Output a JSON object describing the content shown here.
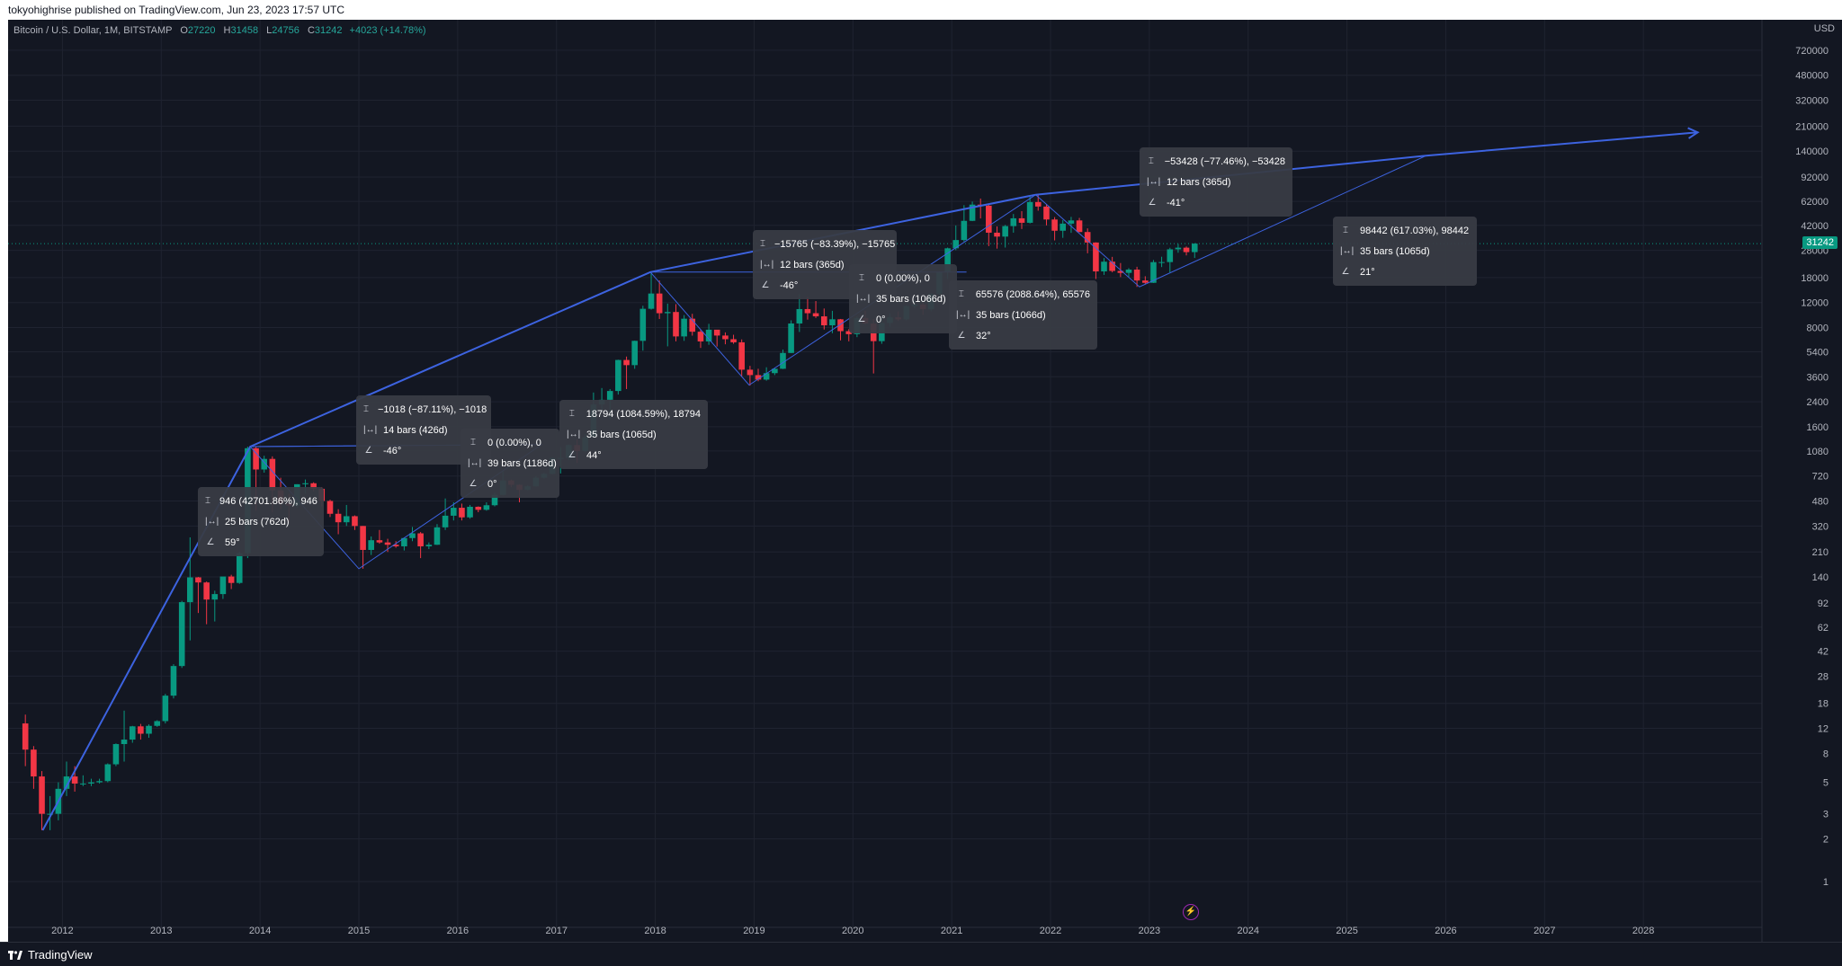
{
  "header": {
    "publish_text": "tokyohighrise published on TradingView.com, Jun 23, 2023 17:57 UTC"
  },
  "legend": {
    "symbol": "Bitcoin / U.S. Dollar, 1M, BITSTAMP",
    "o_label": "O",
    "o_value": "27220",
    "h_label": "H",
    "h_value": "31458",
    "l_label": "L",
    "l_value": "24756",
    "c_label": "C",
    "c_value": "31242",
    "change": "+4023 (+14.78%)"
  },
  "price_axis": {
    "currency": "USD",
    "last_price_label": "31242"
  },
  "footer": {
    "brand": "TradingView"
  },
  "colors": {
    "background": "#131722",
    "up": "#089981",
    "down": "#f23645",
    "drawing": "#3d63e0",
    "last_price": "#089981"
  },
  "chart_data": {
    "type": "candlestick",
    "symbol": "BTCUSD",
    "timeframe": "1M",
    "exchange": "BITSTAMP",
    "y_scale": "log",
    "y_ticks": [
      1,
      2,
      3,
      5,
      8,
      12,
      18,
      28,
      42,
      62,
      92,
      140,
      210,
      320,
      480,
      720,
      1080,
      1600,
      2400,
      3600,
      5400,
      8000,
      12000,
      18000,
      28000,
      42000,
      62000,
      92000,
      140000,
      210000,
      320000,
      480000,
      720000
    ],
    "x_ticks": [
      "2012",
      "2013",
      "2014",
      "2015",
      "2016",
      "2017",
      "2018",
      "2019",
      "2020",
      "2021",
      "2022",
      "2023",
      "2024",
      "2025",
      "2026",
      "2027",
      "2028"
    ],
    "x_range": [
      2011.45,
      2029.2
    ],
    "y_range": [
      0.55,
      1180000
    ],
    "last_close": 31242,
    "candles": [
      [
        2011.583,
        13,
        15,
        6.5,
        8.5
      ],
      [
        2011.667,
        8.5,
        9,
        4.5,
        5.5
      ],
      [
        2011.75,
        5.5,
        6,
        2.3,
        3
      ],
      [
        2011.833,
        3,
        4,
        2.3,
        3
      ],
      [
        2011.917,
        3,
        5,
        2.7,
        4.5
      ],
      [
        2012,
        4.5,
        7,
        4,
        5.5
      ],
      [
        2012.083,
        5.5,
        6.5,
        4.3,
        4.9
      ],
      [
        2012.167,
        4.9,
        5.6,
        4.7,
        4.9
      ],
      [
        2012.25,
        4.9,
        5.3,
        4.7,
        5
      ],
      [
        2012.333,
        5,
        5.3,
        4.9,
        5.1
      ],
      [
        2012.417,
        5.1,
        6.8,
        5,
        6.7
      ],
      [
        2012.5,
        6.7,
        9.4,
        6.5,
        9.3
      ],
      [
        2012.583,
        9.3,
        16,
        7,
        10
      ],
      [
        2012.667,
        10,
        12.5,
        9.5,
        12.4
      ],
      [
        2012.75,
        12.4,
        12.9,
        10,
        11
      ],
      [
        2012.833,
        11,
        12.8,
        10.3,
        12.5
      ],
      [
        2012.917,
        12.5,
        13.7,
        12.3,
        13.5
      ],
      [
        2013,
        13.5,
        21,
        13,
        20.4
      ],
      [
        2013.083,
        20.4,
        34,
        19.5,
        33
      ],
      [
        2013.167,
        33,
        95,
        32,
        93
      ],
      [
        2013.25,
        93,
        266,
        50,
        139
      ],
      [
        2013.333,
        139,
        140,
        78,
        128
      ],
      [
        2013.417,
        128,
        130,
        65,
        97
      ],
      [
        2013.5,
        97,
        112,
        68,
        106
      ],
      [
        2013.583,
        106,
        140,
        98,
        141
      ],
      [
        2013.667,
        141,
        145,
        115,
        127
      ],
      [
        2013.75,
        127,
        210,
        125,
        206
      ],
      [
        2013.833,
        206,
        1160,
        190,
        1130
      ],
      [
        2013.917,
        1130,
        1160,
        410,
        800
      ],
      [
        2014,
        800,
        1000,
        760,
        950
      ],
      [
        2014.083,
        950,
        990,
        400,
        570
      ],
      [
        2014.167,
        570,
        700,
        420,
        460
      ],
      [
        2014.25,
        460,
        540,
        340,
        445
      ],
      [
        2014.333,
        445,
        630,
        430,
        630
      ],
      [
        2014.417,
        630,
        680,
        540,
        640
      ],
      [
        2014.5,
        640,
        650,
        560,
        585
      ],
      [
        2014.583,
        585,
        600,
        440,
        480
      ],
      [
        2014.667,
        480,
        490,
        370,
        390
      ],
      [
        2014.75,
        390,
        420,
        280,
        340
      ],
      [
        2014.833,
        340,
        450,
        320,
        375
      ],
      [
        2014.917,
        375,
        380,
        300,
        320
      ],
      [
        2015,
        320,
        320,
        160,
        217
      ],
      [
        2015.083,
        217,
        270,
        200,
        254
      ],
      [
        2015.167,
        254,
        300,
        240,
        245
      ],
      [
        2015.25,
        245,
        260,
        210,
        236
      ],
      [
        2015.333,
        236,
        250,
        225,
        230
      ],
      [
        2015.417,
        230,
        265,
        215,
        263
      ],
      [
        2015.5,
        263,
        315,
        250,
        284
      ],
      [
        2015.583,
        284,
        290,
        190,
        230
      ],
      [
        2015.667,
        230,
        245,
        220,
        236
      ],
      [
        2015.75,
        236,
        330,
        235,
        313
      ],
      [
        2015.833,
        313,
        500,
        300,
        378
      ],
      [
        2015.917,
        378,
        470,
        350,
        430
      ],
      [
        2016,
        430,
        460,
        350,
        368
      ],
      [
        2016.083,
        368,
        450,
        360,
        437
      ],
      [
        2016.167,
        437,
        440,
        400,
        416
      ],
      [
        2016.25,
        416,
        470,
        410,
        448
      ],
      [
        2016.333,
        448,
        550,
        440,
        530
      ],
      [
        2016.417,
        530,
        780,
        525,
        670
      ],
      [
        2016.5,
        670,
        680,
        600,
        624
      ],
      [
        2016.583,
        624,
        630,
        470,
        575
      ],
      [
        2016.667,
        575,
        620,
        570,
        609
      ],
      [
        2016.75,
        609,
        720,
        605,
        700
      ],
      [
        2016.833,
        700,
        760,
        690,
        745
      ],
      [
        2016.917,
        745,
        970,
        740,
        963
      ],
      [
        2017,
        963,
        1150,
        750,
        965
      ],
      [
        2017.083,
        965,
        1200,
        930,
        1190
      ],
      [
        2017.167,
        1190,
        1300,
        890,
        1080
      ],
      [
        2017.25,
        1080,
        1420,
        1060,
        1350
      ],
      [
        2017.333,
        1350,
        2790,
        1350,
        2300
      ],
      [
        2017.417,
        2300,
        3000,
        2100,
        2480
      ],
      [
        2017.5,
        2480,
        2950,
        1800,
        2860
      ],
      [
        2017.583,
        2860,
        4750,
        2700,
        4730
      ],
      [
        2017.667,
        4730,
        5000,
        2950,
        4350
      ],
      [
        2017.75,
        4350,
        6470,
        4100,
        6450
      ],
      [
        2017.833,
        6450,
        11400,
        5500,
        10850
      ],
      [
        2017.917,
        10850,
        19666,
        10700,
        13900
      ],
      [
        2018,
        13900,
        17200,
        9200,
        10100
      ],
      [
        2018.083,
        10100,
        11800,
        5900,
        10300
      ],
      [
        2018.167,
        10300,
        11700,
        6400,
        6930
      ],
      [
        2018.25,
        6930,
        9800,
        6450,
        9240
      ],
      [
        2018.333,
        9240,
        10000,
        7020,
        7480
      ],
      [
        2018.417,
        7480,
        7790,
        5750,
        6390
      ],
      [
        2018.5,
        6390,
        8500,
        6050,
        7730
      ],
      [
        2018.583,
        7730,
        7700,
        5880,
        7030
      ],
      [
        2018.667,
        7030,
        7400,
        6100,
        6625
      ],
      [
        2018.75,
        6625,
        7120,
        6150,
        6300
      ],
      [
        2018.833,
        6300,
        6600,
        3600,
        4040
      ],
      [
        2018.917,
        4040,
        4300,
        3120,
        3700
      ],
      [
        2019,
        3700,
        4100,
        3350,
        3440
      ],
      [
        2019.083,
        3440,
        4200,
        3380,
        3820
      ],
      [
        2019.167,
        3820,
        4150,
        3700,
        4100
      ],
      [
        2019.25,
        4100,
        5600,
        4080,
        5300
      ],
      [
        2019.333,
        5300,
        9000,
        5300,
        8550
      ],
      [
        2019.417,
        8550,
        13800,
        7450,
        10800
      ],
      [
        2019.5,
        10800,
        13200,
        9100,
        10100
      ],
      [
        2019.583,
        10100,
        12300,
        9350,
        9600
      ],
      [
        2019.667,
        9600,
        10900,
        7750,
        8300
      ],
      [
        2019.75,
        8300,
        10500,
        7300,
        9150
      ],
      [
        2019.833,
        9150,
        9200,
        6500,
        7550
      ],
      [
        2019.917,
        7550,
        7800,
        6400,
        7190
      ],
      [
        2020,
        7190,
        9600,
        6850,
        9350
      ],
      [
        2020.083,
        9350,
        10500,
        8450,
        8550
      ],
      [
        2020.167,
        8550,
        9200,
        3800,
        6420
      ],
      [
        2020.25,
        6420,
        9470,
        6150,
        8620
      ],
      [
        2020.333,
        8620,
        10070,
        8100,
        9450
      ],
      [
        2020.417,
        9450,
        10400,
        8900,
        9140
      ],
      [
        2020.5,
        9140,
        11450,
        9000,
        11350
      ],
      [
        2020.583,
        11350,
        12470,
        10950,
        11650
      ],
      [
        2020.667,
        11650,
        12050,
        9850,
        10780
      ],
      [
        2020.75,
        10780,
        14100,
        10400,
        13800
      ],
      [
        2020.833,
        13800,
        19900,
        13200,
        19700
      ],
      [
        2020.917,
        19700,
        29300,
        17600,
        28950
      ],
      [
        2021,
        28950,
        41950,
        28100,
        33100
      ],
      [
        2021.083,
        33100,
        58300,
        32300,
        45200
      ],
      [
        2021.167,
        45200,
        61800,
        45000,
        58800
      ],
      [
        2021.25,
        58800,
        64900,
        47000,
        57800
      ],
      [
        2021.333,
        57800,
        59500,
        30000,
        37300
      ],
      [
        2021.417,
        37300,
        41300,
        28800,
        35000
      ],
      [
        2021.5,
        35000,
        42300,
        29300,
        41500
      ],
      [
        2021.583,
        41500,
        50500,
        37300,
        47100
      ],
      [
        2021.667,
        47100,
        52900,
        39600,
        43800
      ],
      [
        2021.75,
        43800,
        67000,
        43300,
        61300
      ],
      [
        2021.833,
        61300,
        69000,
        53300,
        57000
      ],
      [
        2021.917,
        57000,
        59000,
        42000,
        46200
      ],
      [
        2022,
        46200,
        48000,
        32900,
        38500
      ],
      [
        2022.083,
        38500,
        45800,
        34300,
        43200
      ],
      [
        2022.167,
        43200,
        48200,
        37200,
        45500
      ],
      [
        2022.25,
        45500,
        47400,
        37600,
        37700
      ],
      [
        2022.333,
        37700,
        40000,
        26700,
        31800
      ],
      [
        2022.417,
        31800,
        31900,
        17600,
        19900
      ],
      [
        2022.5,
        19900,
        24700,
        18800,
        23300
      ],
      [
        2022.583,
        23300,
        25200,
        19600,
        20050
      ],
      [
        2022.667,
        20050,
        22800,
        18150,
        19430
      ],
      [
        2022.75,
        19430,
        20990,
        18200,
        20490
      ],
      [
        2022.833,
        20490,
        21450,
        15480,
        17170
      ],
      [
        2022.917,
        17170,
        18400,
        16260,
        16540
      ],
      [
        2023,
        16540,
        23950,
        16500,
        23130
      ],
      [
        2023.083,
        23130,
        25250,
        21350,
        23150
      ],
      [
        2023.167,
        23150,
        29200,
        19550,
        28480
      ],
      [
        2023.25,
        28480,
        31050,
        26940,
        29250
      ],
      [
        2023.333,
        29250,
        29820,
        25800,
        27220
      ],
      [
        2023.417,
        27220,
        31458,
        24756,
        31242
      ]
    ],
    "drawings": {
      "polyline": [
        [
          2011.8,
          2.3
        ],
        [
          2013.9,
          1160
        ],
        [
          2017.95,
          19666
        ],
        [
          2021.85,
          69000
        ],
        [
          2025.8,
          130000
        ],
        [
          2028.55,
          190000
        ]
      ],
      "measurements": [
        {
          "price_line": "946 (42701.86%), 946",
          "bars_line": "25 bars (762d)",
          "angle_line": "59°"
        },
        {
          "price_line": "−1018 (−87.11%), −1018",
          "bars_line": "14 bars (426d)",
          "angle_line": "-46°"
        },
        {
          "price_line": "0 (0.00%), 0",
          "bars_line": "39 bars (1186d)",
          "angle_line": "0°"
        },
        {
          "price_line": "18794 (1084.59%), 18794",
          "bars_line": "35 bars (1065d)",
          "angle_line": "44°"
        },
        {
          "price_line": "−15765 (−83.39%), −15765",
          "bars_line": "12 bars (365d)",
          "angle_line": "-46°"
        },
        {
          "price_line": "0 (0.00%), 0",
          "bars_line": "35 bars (1066d)",
          "angle_line": "0°"
        },
        {
          "price_line": "65576 (2088.64%), 65576",
          "bars_line": "35 bars (1066d)",
          "angle_line": "32°"
        },
        {
          "price_line": "−53428 (−77.46%), −53428",
          "bars_line": "12 bars (365d)",
          "angle_line": "-41°"
        },
        {
          "price_line": "98442 (617.03%), 98442",
          "bars_line": "35 bars (1065d)",
          "angle_line": "21°"
        }
      ]
    }
  }
}
